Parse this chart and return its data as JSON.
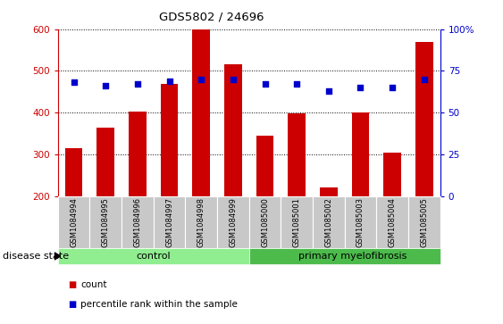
{
  "title": "GDS5802 / 24696",
  "samples": [
    "GSM1084994",
    "GSM1084995",
    "GSM1084996",
    "GSM1084997",
    "GSM1084998",
    "GSM1084999",
    "GSM1085000",
    "GSM1085001",
    "GSM1085002",
    "GSM1085003",
    "GSM1085004",
    "GSM1085005"
  ],
  "counts": [
    315,
    365,
    403,
    468,
    600,
    515,
    345,
    398,
    220,
    400,
    303,
    570
  ],
  "percentiles": [
    68,
    66,
    67,
    69,
    70,
    70,
    67,
    67,
    63,
    65,
    65,
    70
  ],
  "bar_color": "#cc0000",
  "dot_color": "#0000cc",
  "ylim_left": [
    200,
    600
  ],
  "ylim_right": [
    0,
    100
  ],
  "yticks_left": [
    200,
    300,
    400,
    500,
    600
  ],
  "yticks_right": [
    0,
    25,
    50,
    75,
    100
  ],
  "control_color": "#90ee90",
  "myelofibrosis_color": "#4cbb4c",
  "xlabel_bg": "#c8c8c8",
  "grid_color": "#000000",
  "disease_state_label": "disease state",
  "legend_count_label": "count",
  "legend_pct_label": "percentile rank within the sample",
  "n_control": 6,
  "n_total": 12
}
